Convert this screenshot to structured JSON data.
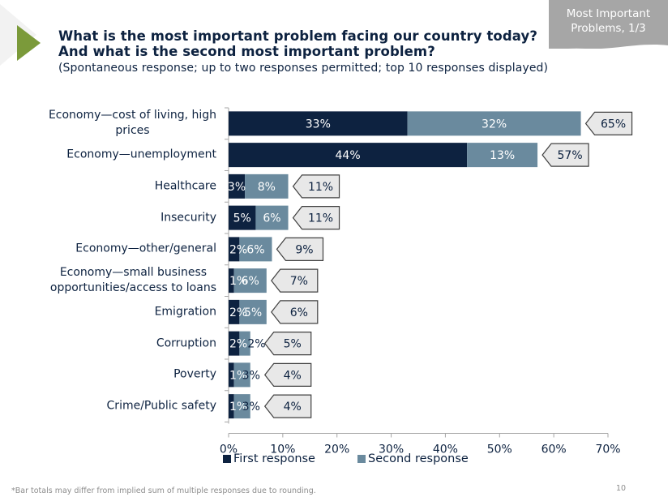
{
  "header": {
    "title_line1": "What is the most important problem facing our country today?",
    "title_line2": "And what is the second most important problem?",
    "subtitle": "(Spontaneous response; up to two responses permitted; top 10 responses displayed)",
    "section_tag_line1": "Most Important",
    "section_tag_line2": "Problems, 1/3"
  },
  "colors": {
    "first_response": "#0d2240",
    "second_response": "#6a8a9e",
    "total_callout_bg": "#e8e8e8",
    "accent_green": "#7b9a3a",
    "section_tag_bg": "#a6a6a6"
  },
  "chart_data": {
    "type": "bar",
    "orientation": "horizontal",
    "stacked": true,
    "title": "What is the most important problem facing our country today? And what is the second most important problem?",
    "xlabel": "",
    "ylabel": "",
    "xlim": [
      0,
      70
    ],
    "x_ticks": [
      "0%",
      "10%",
      "20%",
      "30%",
      "40%",
      "50%",
      "60%",
      "70%"
    ],
    "x_tick_values": [
      0,
      10,
      20,
      30,
      40,
      50,
      60,
      70
    ],
    "grid": false,
    "legend_position": "bottom",
    "categories": [
      [
        "Economy—cost of living, high",
        "prices"
      ],
      [
        "Economy—unemployment"
      ],
      [
        "Healthcare"
      ],
      [
        "Insecurity"
      ],
      [
        "Economy—other/general"
      ],
      [
        "Economy—small business",
        "opportunities/access to loans"
      ],
      [
        "Emigration"
      ],
      [
        "Corruption"
      ],
      [
        "Poverty"
      ],
      [
        "Crime/Public safety"
      ]
    ],
    "series": [
      {
        "name": "First response",
        "values": [
          33,
          44,
          3,
          5,
          2,
          1,
          2,
          2,
          1,
          1
        ]
      },
      {
        "name": "Second response",
        "values": [
          32,
          13,
          8,
          6,
          6,
          6,
          5,
          2,
          3,
          3
        ]
      }
    ],
    "totals": [
      65,
      57,
      11,
      11,
      9,
      7,
      6,
      5,
      4,
      4
    ],
    "value_suffix": "%"
  },
  "footnote": "*Bar totals may differ from implied sum of multiple responses due to rounding.",
  "page_number": "10"
}
